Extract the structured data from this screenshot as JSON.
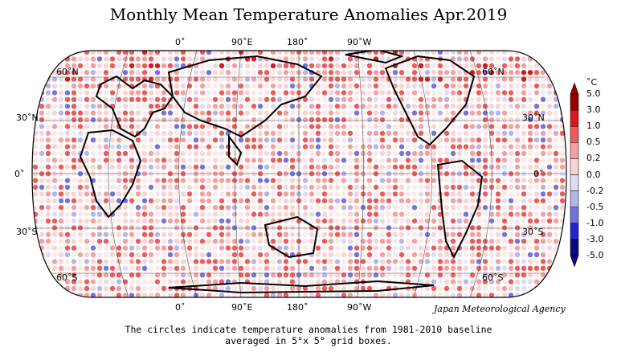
{
  "title": "Monthly Mean Temperature Anomalies Apr.2019",
  "top_longitudes": [
    "0˚",
    "90˚E",
    "180˚",
    "90˚W"
  ],
  "bottom_longitudes": [
    "0˚",
    "90˚E",
    "180˚",
    "90˚W"
  ],
  "left_latitudes": [
    "60˚N",
    "30˚N",
    "0˚",
    "30˚S",
    "60˚S"
  ],
  "right_latitudes": [
    "60˚N",
    "30˚N",
    "0˚",
    "30˚S",
    "60˚S"
  ],
  "agency": "Japan Meteorological Agency",
  "caption_line1": "The circles indicate temperature anomalies from 1981-2010 baseline",
  "caption_line2": "averaged in 5°x 5° grid boxes.",
  "colorbar": {
    "unit": "˚C",
    "labels": [
      "5.0",
      "3.0",
      "1.0",
      "0.5",
      "0.2",
      "0.0",
      "-0.2",
      "-0.5",
      "-1.0",
      "-3.0",
      "-5.0"
    ],
    "colors": [
      "#990000",
      "#d7191c",
      "#ee5a5a",
      "#f4a0a0",
      "#fad4d4",
      "#fbeaea",
      "#dcdcf5",
      "#b4b4ee",
      "#7373e0",
      "#2424cc",
      "#0a0a80"
    ]
  }
}
